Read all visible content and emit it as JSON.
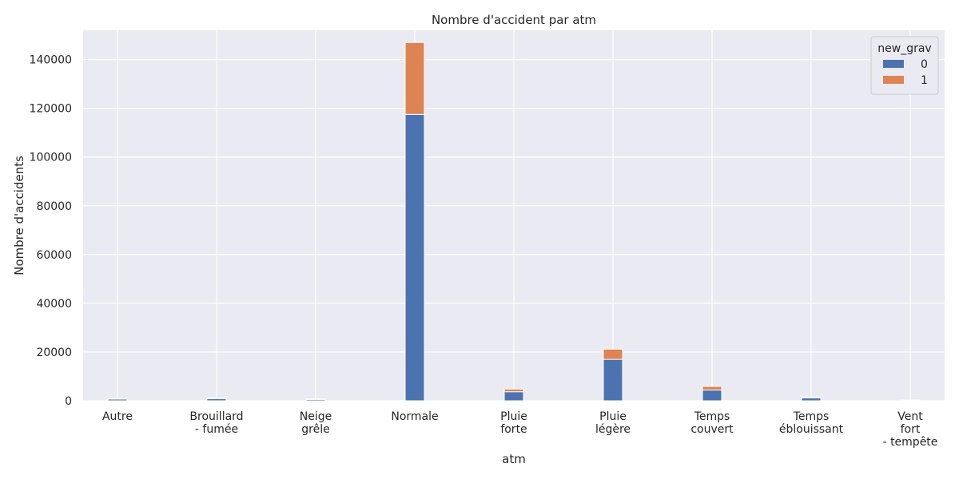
{
  "chart_data": {
    "type": "bar",
    "stacked": true,
    "title": "Nombre d'accident par atm",
    "xlabel": "atm",
    "ylabel": "Nombre d'accidents",
    "categories": [
      [
        "Autre"
      ],
      [
        "Brouillard",
        "- fumée"
      ],
      [
        "Neige",
        "grêle"
      ],
      [
        "Normale"
      ],
      [
        "Pluie",
        "forte"
      ],
      [
        "Pluie",
        "légère"
      ],
      [
        "Temps",
        "couvert"
      ],
      [
        "Temps",
        "éblouissant"
      ],
      [
        "Vent",
        "fort",
        "- tempête"
      ]
    ],
    "series": [
      {
        "name": "0",
        "color": "#4c72b0",
        "values": [
          700,
          900,
          550,
          117500,
          3700,
          17000,
          4400,
          1200,
          250
        ]
      },
      {
        "name": "1",
        "color": "#dd8452",
        "values": [
          150,
          250,
          200,
          29500,
          1100,
          4200,
          1500,
          350,
          80
        ]
      }
    ],
    "ylim": [
      0,
      152000
    ],
    "yticks": [
      0,
      20000,
      40000,
      60000,
      80000,
      100000,
      120000,
      140000
    ],
    "grid": true,
    "legend": {
      "title": "new_grav",
      "position": "top-right"
    }
  }
}
